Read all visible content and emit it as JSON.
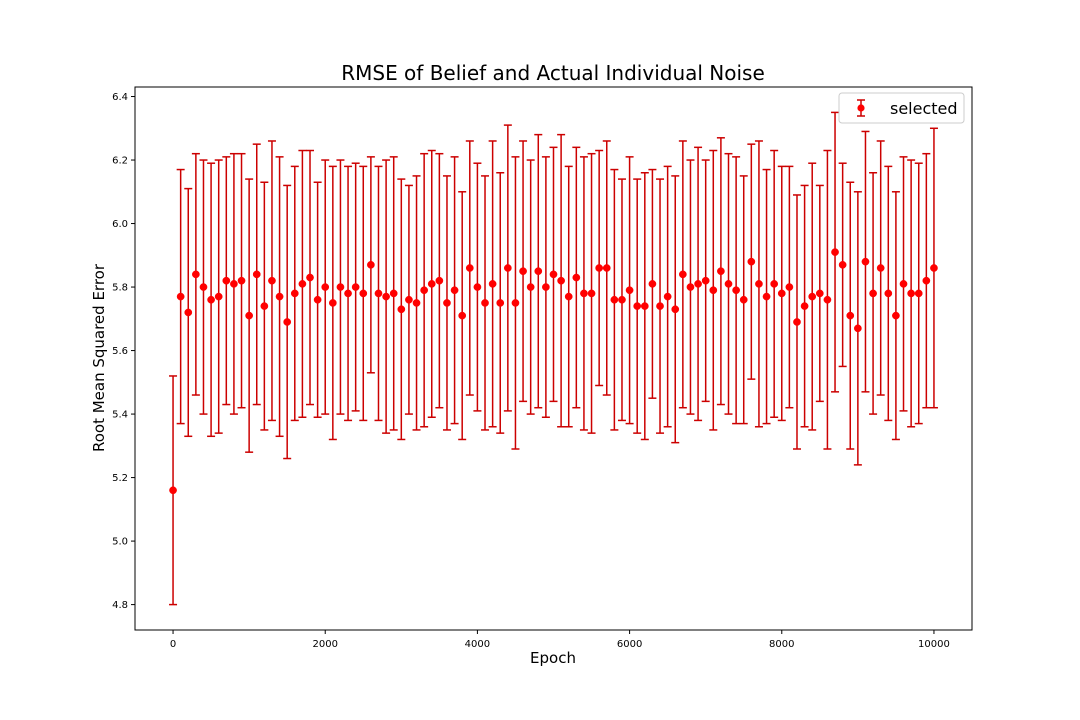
{
  "chart_data": {
    "type": "scatter",
    "title": "RMSE of Belief and Actual Individual Noise",
    "xlabel": "Epoch",
    "ylabel": "Root Mean Squared Error",
    "xlim": [
      -500,
      10500
    ],
    "ylim": [
      4.72,
      6.43
    ],
    "xticks": [
      0,
      2000,
      4000,
      6000,
      8000,
      10000
    ],
    "xtick_labels": [
      "0",
      "2000",
      "4000",
      "6000",
      "8000",
      "10000"
    ],
    "yticks": [
      4.8,
      5.0,
      5.2,
      5.4,
      5.6,
      5.8,
      6.0,
      6.2,
      6.4
    ],
    "ytick_labels": [
      "4.8",
      "5.0",
      "5.2",
      "5.4",
      "5.6",
      "5.8",
      "6.0",
      "6.2",
      "6.4"
    ],
    "grid": false,
    "legend_position": "top-right",
    "series": [
      {
        "name": "selected",
        "color": "#ff0000",
        "errorbar_color": "#cc0000",
        "marker": "circle",
        "errorbars": true,
        "x": [
          0,
          100,
          200,
          300,
          400,
          500,
          600,
          700,
          800,
          900,
          1000,
          1100,
          1200,
          1300,
          1400,
          1500,
          1600,
          1700,
          1800,
          1900,
          2000,
          2100,
          2200,
          2300,
          2400,
          2500,
          2600,
          2700,
          2800,
          2900,
          3000,
          3100,
          3200,
          3300,
          3400,
          3500,
          3600,
          3700,
          3800,
          3900,
          4000,
          4100,
          4200,
          4300,
          4400,
          4500,
          4600,
          4700,
          4800,
          4900,
          5000,
          5100,
          5200,
          5300,
          5400,
          5500,
          5600,
          5700,
          5800,
          5900,
          6000,
          6100,
          6200,
          6300,
          6400,
          6500,
          6600,
          6700,
          6800,
          6900,
          7000,
          7100,
          7200,
          7300,
          7400,
          7500,
          7600,
          7700,
          7800,
          7900,
          8000,
          8100,
          8200,
          8300,
          8400,
          8500,
          8600,
          8700,
          8800,
          8900,
          9000,
          9100,
          9200,
          9300,
          9400,
          9500,
          9600,
          9700,
          9800,
          9900,
          10000
        ],
        "y": [
          5.16,
          5.77,
          5.72,
          5.84,
          5.8,
          5.76,
          5.77,
          5.82,
          5.81,
          5.82,
          5.71,
          5.84,
          5.74,
          5.82,
          5.77,
          5.69,
          5.78,
          5.81,
          5.83,
          5.76,
          5.8,
          5.75,
          5.8,
          5.78,
          5.8,
          5.78,
          5.87,
          5.78,
          5.77,
          5.78,
          5.73,
          5.76,
          5.75,
          5.79,
          5.81,
          5.82,
          5.75,
          5.79,
          5.71,
          5.86,
          5.8,
          5.75,
          5.81,
          5.75,
          5.86,
          5.75,
          5.85,
          5.8,
          5.85,
          5.8,
          5.84,
          5.82,
          5.77,
          5.83,
          5.78,
          5.78,
          5.86,
          5.86,
          5.76,
          5.76,
          5.79,
          5.74,
          5.74,
          5.81,
          5.74,
          5.77,
          5.73,
          5.84,
          5.8,
          5.81,
          5.82,
          5.79,
          5.85,
          5.81,
          5.79,
          5.76,
          5.88,
          5.81,
          5.77,
          5.81,
          5.78,
          5.8,
          5.69,
          5.74,
          5.77,
          5.78,
          5.76,
          5.91,
          5.87,
          5.71,
          5.67,
          5.88,
          5.78,
          5.86,
          5.78,
          5.71,
          5.81,
          5.78,
          5.78,
          5.82,
          5.86
        ],
        "yerr": [
          0.36,
          0.4,
          0.39,
          0.38,
          0.4,
          0.43,
          0.43,
          0.39,
          0.41,
          0.4,
          0.43,
          0.41,
          0.39,
          0.44,
          0.44,
          0.43,
          0.4,
          0.42,
          0.4,
          0.37,
          0.4,
          0.43,
          0.4,
          0.4,
          0.39,
          0.4,
          0.34,
          0.4,
          0.43,
          0.43,
          0.41,
          0.36,
          0.4,
          0.43,
          0.42,
          0.4,
          0.4,
          0.42,
          0.39,
          0.4,
          0.39,
          0.4,
          0.45,
          0.41,
          0.45,
          0.46,
          0.41,
          0.4,
          0.43,
          0.41,
          0.4,
          0.46,
          0.41,
          0.41,
          0.43,
          0.44,
          0.37,
          0.4,
          0.41,
          0.38,
          0.42,
          0.4,
          0.42,
          0.36,
          0.4,
          0.41,
          0.42,
          0.42,
          0.4,
          0.43,
          0.38,
          0.44,
          0.42,
          0.41,
          0.42,
          0.39,
          0.37,
          0.45,
          0.4,
          0.42,
          0.4,
          0.38,
          0.4,
          0.38,
          0.42,
          0.34,
          0.47,
          0.44,
          0.32,
          0.42,
          0.43,
          0.41,
          0.38,
          0.4,
          0.4,
          0.39,
          0.4,
          0.42,
          0.41,
          0.4,
          0.44
        ]
      }
    ]
  }
}
